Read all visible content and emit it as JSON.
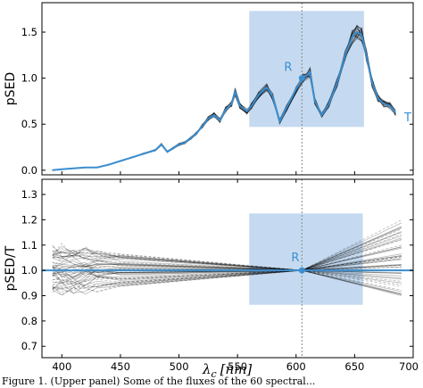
{
  "chart_data": [
    {
      "type": "line",
      "ylabel": "pSED",
      "xlim": [
        383,
        700
      ],
      "ylim": [
        -0.05,
        1.82
      ],
      "yticks": [
        0.0,
        0.5,
        1.0,
        1.5
      ],
      "ytick_labels": [
        "0.0",
        "0.5",
        "1.0",
        "1.5"
      ],
      "x": [
        392,
        400,
        410,
        420,
        430,
        440,
        450,
        460,
        470,
        480,
        485,
        490,
        495,
        500,
        505,
        510,
        515,
        520,
        525,
        530,
        535,
        540,
        545,
        548,
        552,
        558,
        562,
        568,
        575,
        580,
        586,
        592,
        600,
        606,
        612,
        616,
        622,
        628,
        635,
        642,
        648,
        652,
        656,
        660,
        665,
        670,
        675,
        680,
        685
      ],
      "series": [
        {
          "name": "T",
          "values": [
            0.0,
            0.01,
            0.02,
            0.03,
            0.03,
            0.06,
            0.1,
            0.14,
            0.18,
            0.22,
            0.28,
            0.2,
            0.24,
            0.28,
            0.3,
            0.35,
            0.4,
            0.48,
            0.56,
            0.6,
            0.54,
            0.66,
            0.72,
            0.85,
            0.7,
            0.64,
            0.7,
            0.82,
            0.9,
            0.8,
            0.53,
            0.68,
            0.88,
            1.0,
            1.06,
            0.75,
            0.6,
            0.72,
            0.95,
            1.25,
            1.45,
            1.5,
            1.47,
            1.25,
            0.95,
            0.78,
            0.72,
            0.7,
            0.62
          ]
        }
      ],
      "band_spread": 0.04,
      "band_lines": 20,
      "highlight": {
        "x0": 560,
        "x1": 658,
        "y0": 0.47,
        "y1": 1.73
      },
      "vline_x": 605,
      "ref_point": {
        "x": 605,
        "y": 1.0,
        "label": "R"
      },
      "series_label": "T",
      "color": "#3b8ed0",
      "box_color": "#c5daf0"
    },
    {
      "type": "line",
      "ylabel": "pSED/T",
      "xlabel_symbol": "λ",
      "xlabel_sub": "c",
      "xlabel_unit": "[nm]",
      "xlim": [
        383,
        700
      ],
      "ylim": [
        0.655,
        1.36
      ],
      "xticks": [
        400,
        450,
        500,
        550,
        600,
        650,
        700
      ],
      "xtick_labels": [
        "400",
        "450",
        "500",
        "550",
        "600",
        "650",
        "700"
      ],
      "yticks": [
        0.7,
        0.8,
        0.9,
        1.0,
        1.1,
        1.2,
        1.3
      ],
      "ytick_labels": [
        "0.7",
        "0.8",
        "0.9",
        "1.0",
        "1.1",
        "1.2",
        "1.3"
      ],
      "ratio_x": [
        392,
        400,
        410,
        420,
        430,
        450,
        480,
        510,
        540,
        570,
        590,
        605,
        620,
        640,
        660,
        680,
        690
      ],
      "ratio_series_count": 50,
      "ratio_spread_left": 0.09,
      "ratio_spread_right": 0.28,
      "highlight": {
        "x0": 560,
        "x1": 657,
        "y0": 0.864,
        "y1": 1.225
      },
      "vline_x": 605,
      "ref_point": {
        "x": 605,
        "y": 1.0,
        "label": "R"
      },
      "unity_line": 1.0,
      "color": "#3b8ed0",
      "box_color": "#c5daf0"
    }
  ],
  "caption": "Figure 1. (Upper panel) Some of the fluxes of the 60 spectral..."
}
